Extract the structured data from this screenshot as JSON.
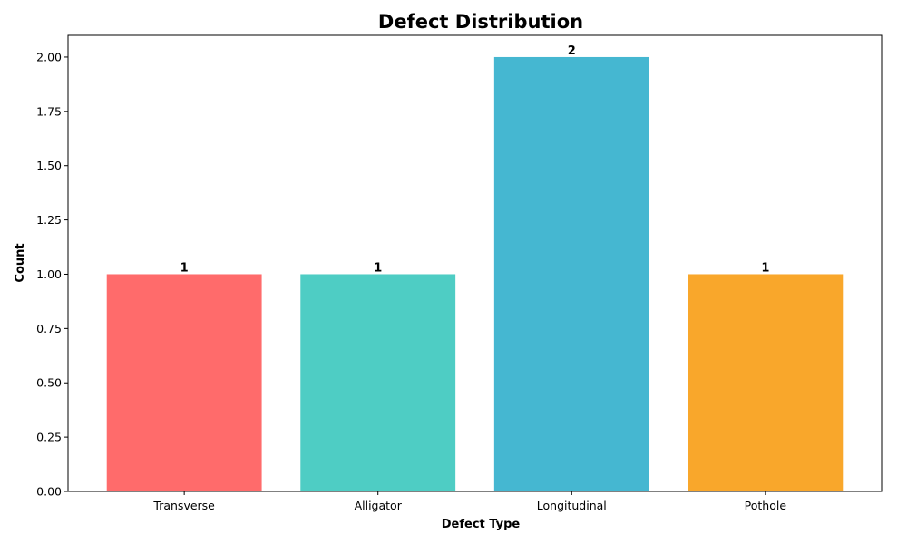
{
  "chart_data": {
    "type": "bar",
    "title": "Defect Distribution",
    "xlabel": "Defect Type",
    "ylabel": "Count",
    "categories": [
      "Transverse",
      "Alligator",
      "Longitudinal",
      "Pothole"
    ],
    "values": [
      1,
      1,
      2,
      1
    ],
    "data_labels": [
      "1",
      "1",
      "2",
      "1"
    ],
    "colors": [
      "#ff6b6b",
      "#4ecdc4",
      "#45b7d1",
      "#f9a72b"
    ],
    "ylim": [
      0,
      2.1
    ],
    "yticks": [
      0,
      0.25,
      0.5,
      0.75,
      1.0,
      1.25,
      1.5,
      1.75,
      2.0
    ],
    "ytick_labels": [
      "0.00",
      "0.25",
      "0.50",
      "0.75",
      "1.00",
      "1.25",
      "1.50",
      "1.75",
      "2.00"
    ],
    "grid": false,
    "legend": "none"
  }
}
